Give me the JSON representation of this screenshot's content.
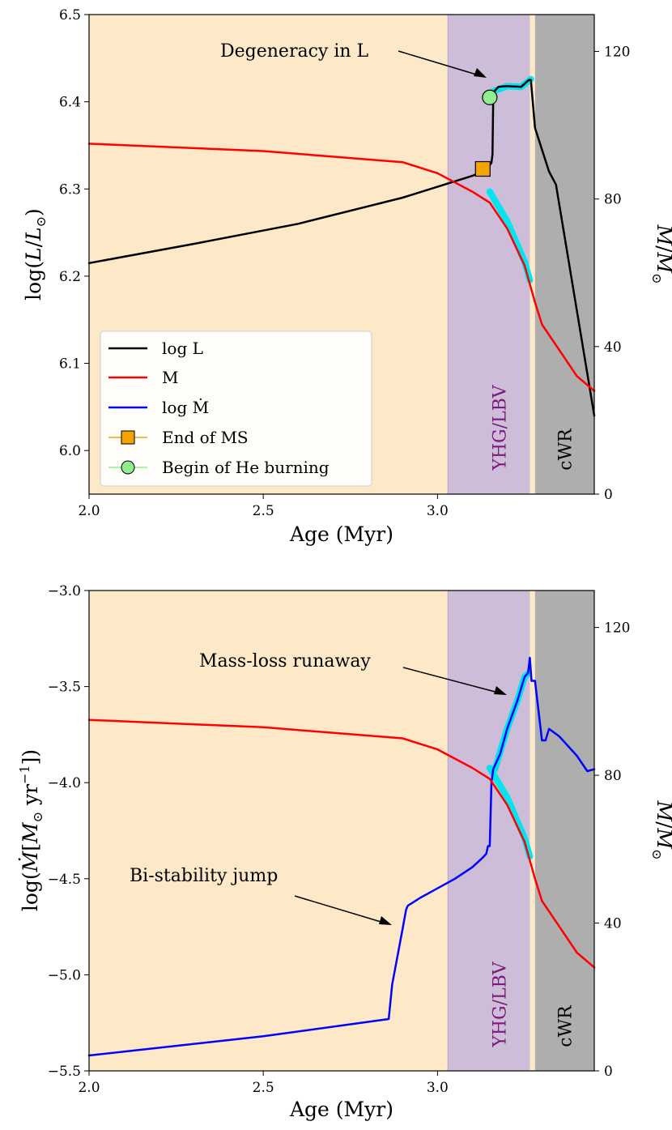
{
  "colors": {
    "background_ms": "#fde9c8",
    "yhg_region": "#cdbdd8",
    "cwr_region": "#aeaeae",
    "luminosity": "#000000",
    "mass": "#ff0000",
    "mdot": "#0000ff",
    "highlight": "#00e5ee",
    "end_ms_marker": "#f5a300",
    "he_marker": "#90ee90",
    "yhg_text": "#7a1a7a"
  },
  "chart_data": [
    {
      "type": "line",
      "panel": "top",
      "xlabel": "Age (Myr)",
      "ylabel": "log(L/L_sun)",
      "ylabel_right": "M/M_sun",
      "xlim": [
        2.0,
        3.45
      ],
      "ylim": [
        5.95,
        6.5
      ],
      "ylim_right": [
        0,
        130
      ],
      "x_ticks": [
        "2.0",
        "2.5",
        "3.0"
      ],
      "y_ticks": [
        "6.0",
        "6.1",
        "6.2",
        "6.3",
        "6.4",
        "6.5"
      ],
      "y_right_ticks": [
        "0",
        "40",
        "80",
        "120"
      ],
      "regions": [
        {
          "label": "YHG/LBV",
          "x": [
            3.03,
            3.265
          ]
        },
        {
          "label": "cWR",
          "x": [
            3.28,
            3.45
          ]
        }
      ],
      "series": [
        {
          "name": "log L",
          "axis": "left",
          "x": [
            2.0,
            2.3,
            2.6,
            2.9,
            3.1,
            3.14,
            3.155,
            3.158,
            3.16,
            3.165,
            3.175,
            3.2,
            3.24,
            3.262,
            3.268,
            3.28,
            3.32,
            3.34,
            3.45
          ],
          "y": [
            6.215,
            6.237,
            6.26,
            6.29,
            6.315,
            6.322,
            6.33,
            6.34,
            6.405,
            6.413,
            6.417,
            6.418,
            6.417,
            6.425,
            6.425,
            6.37,
            6.32,
            6.305,
            6.04
          ]
        },
        {
          "name": "M",
          "axis": "right",
          "x": [
            2.0,
            2.5,
            2.9,
            3.0,
            3.1,
            3.15,
            3.2,
            3.25,
            3.28,
            3.3,
            3.35,
            3.4,
            3.45
          ],
          "y": [
            95,
            93,
            90,
            87,
            82,
            79,
            72,
            62,
            52,
            46,
            39,
            32,
            28
          ]
        },
        {
          "name": "M highlight",
          "axis": "right",
          "role": "highlight",
          "x": [
            3.15,
            3.2,
            3.25,
            3.265
          ],
          "y": [
            82,
            74,
            63,
            58
          ]
        },
        {
          "name": "log L highlight",
          "axis": "left",
          "role": "highlight",
          "x": [
            3.16,
            3.2,
            3.24,
            3.268
          ],
          "y": [
            6.412,
            6.418,
            6.417,
            6.426
          ]
        }
      ],
      "markers": [
        {
          "name": "End of MS",
          "x": 3.13,
          "y": 6.323
        },
        {
          "name": "Begin of He burning",
          "x": 3.15,
          "y": 6.405
        }
      ],
      "legend": {
        "placement": "lower-left",
        "entries": [
          "log L",
          "M",
          "log Ṁ",
          "End of MS",
          "Begin of He burning"
        ]
      },
      "annotations": [
        {
          "text": "Degeneracy in L",
          "target_x": 3.16,
          "target_y": 6.415
        }
      ]
    },
    {
      "type": "line",
      "panel": "bottom",
      "xlabel": "Age (Myr)",
      "ylabel": "log(Ṁ[M_sun yr^-1])",
      "ylabel_right": "M/M_sun",
      "xlim": [
        2.0,
        3.45
      ],
      "ylim": [
        -5.5,
        -3.0
      ],
      "ylim_right": [
        0,
        130
      ],
      "x_ticks": [
        "2.0",
        "2.5",
        "3.0"
      ],
      "y_ticks": [
        "−5.5",
        "−5.0",
        "−4.5",
        "−4.0",
        "−3.5",
        "−3.0"
      ],
      "y_right_ticks": [
        "0",
        "40",
        "80",
        "120"
      ],
      "regions": [
        {
          "label": "YHG/LBV",
          "x": [
            3.03,
            3.265
          ]
        },
        {
          "label": "cWR",
          "x": [
            3.28,
            3.45
          ]
        }
      ],
      "series": [
        {
          "name": "log Ṁ",
          "axis": "left",
          "x": [
            2.0,
            2.5,
            2.86,
            2.87,
            2.9,
            2.91,
            2.915,
            2.95,
            3.0,
            3.05,
            3.1,
            3.13,
            3.14,
            3.145,
            3.15,
            3.155,
            3.16,
            3.18,
            3.2,
            3.23,
            3.25,
            3.26,
            3.265,
            3.27,
            3.28,
            3.3,
            3.31,
            3.32,
            3.35,
            3.4,
            3.43,
            3.45
          ],
          "y": [
            -5.42,
            -5.32,
            -5.23,
            -5.05,
            -4.76,
            -4.66,
            -4.64,
            -4.6,
            -4.55,
            -4.5,
            -4.44,
            -4.39,
            -4.37,
            -4.33,
            -4.33,
            -4.0,
            -3.93,
            -3.85,
            -3.72,
            -3.57,
            -3.45,
            -3.43,
            -3.35,
            -3.47,
            -3.47,
            -3.78,
            -3.78,
            -3.72,
            -3.76,
            -3.86,
            -3.94,
            -3.93
          ]
        },
        {
          "name": "M",
          "axis": "right",
          "x": [
            2.0,
            2.5,
            2.9,
            3.0,
            3.1,
            3.15,
            3.2,
            3.25,
            3.28,
            3.3,
            3.35,
            3.4,
            3.45
          ],
          "y": [
            95,
            93,
            90,
            87,
            82,
            79,
            72,
            62,
            52,
            46,
            39,
            32,
            28
          ]
        },
        {
          "name": "log Ṁ highlight",
          "axis": "left",
          "role": "highlight",
          "x": [
            3.165,
            3.2,
            3.23,
            3.25,
            3.262
          ],
          "y": [
            -3.93,
            -3.72,
            -3.57,
            -3.45,
            -3.43
          ]
        },
        {
          "name": "M highlight",
          "axis": "right",
          "role": "highlight",
          "x": [
            3.15,
            3.2,
            3.25,
            3.265
          ],
          "y": [
            82,
            74,
            63,
            58
          ]
        }
      ],
      "annotations": [
        {
          "text": "Mass-loss runaway",
          "target_x": 3.2,
          "target_y": -3.55
        },
        {
          "text": "Bi-stability jump",
          "target_x": 2.9,
          "target_y": -4.76
        }
      ]
    }
  ]
}
